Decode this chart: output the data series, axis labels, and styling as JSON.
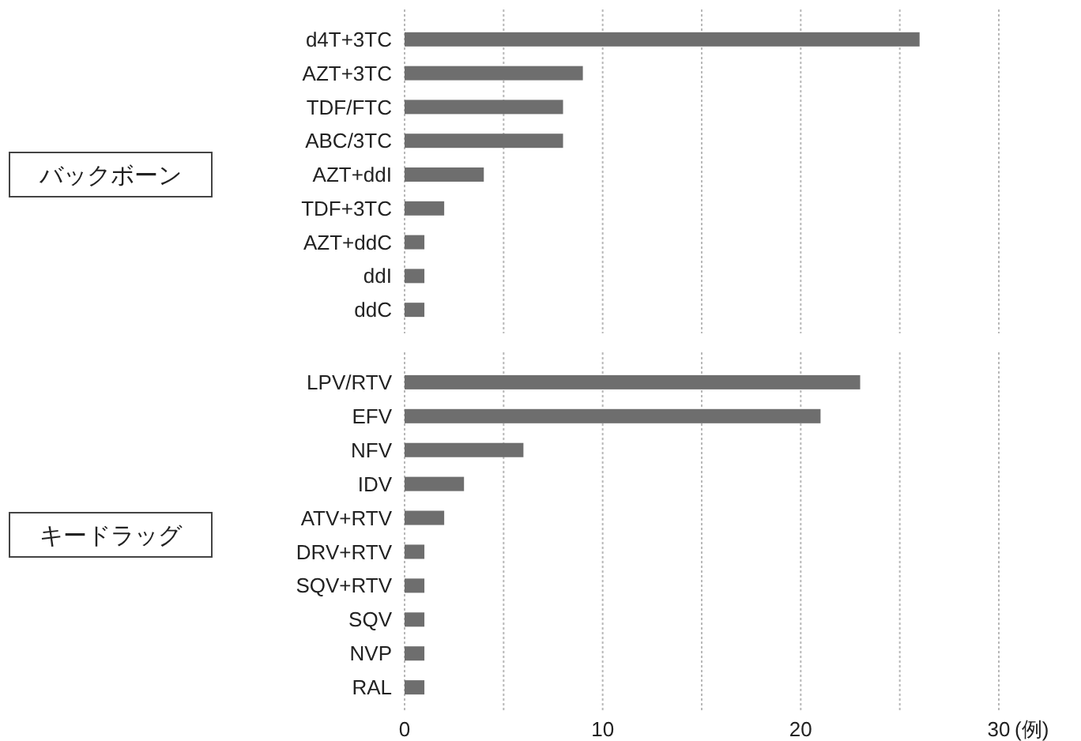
{
  "chart_data": [
    {
      "type": "bar",
      "orientation": "horizontal",
      "ylabel": "バックボーン",
      "categories": [
        "d4T+3TC",
        "AZT+3TC",
        "TDF/FTC",
        "ABC/3TC",
        "AZT+ddI",
        "TDF+3TC",
        "AZT+ddC",
        "ddI",
        "ddC"
      ],
      "values": [
        26,
        9,
        8,
        8,
        4,
        2,
        1,
        1,
        1
      ],
      "color": "#6e6e6e",
      "xlim": [
        0,
        30
      ],
      "xticks": [
        0,
        {
          "value": 5,
          "label": null
        },
        10,
        {
          "value": 15,
          "label": null
        },
        20,
        {
          "value": 25,
          "label": null
        },
        30
      ],
      "grid": "x",
      "tick_labels": "y"
    },
    {
      "type": "bar",
      "orientation": "horizontal",
      "ylabel": "キードラッグ",
      "xlabel": "(例)",
      "categories": [
        "LPV/RTV",
        "EFV",
        "NFV",
        "IDV",
        "ATV+RTV",
        "DRV+RTV",
        "SQV+RTV",
        "SQV",
        "NVP",
        "RAL"
      ],
      "values": [
        23,
        21,
        6,
        3,
        2,
        1,
        1,
        1,
        1,
        1
      ],
      "color": "#6e6e6e",
      "xlim": [
        0,
        30
      ],
      "xticks": [
        0,
        {
          "value": 5,
          "label": null
        },
        10,
        {
          "value": 15,
          "label": null
        },
        20,
        {
          "value": 25,
          "label": null
        },
        30
      ],
      "grid": "x"
    }
  ]
}
